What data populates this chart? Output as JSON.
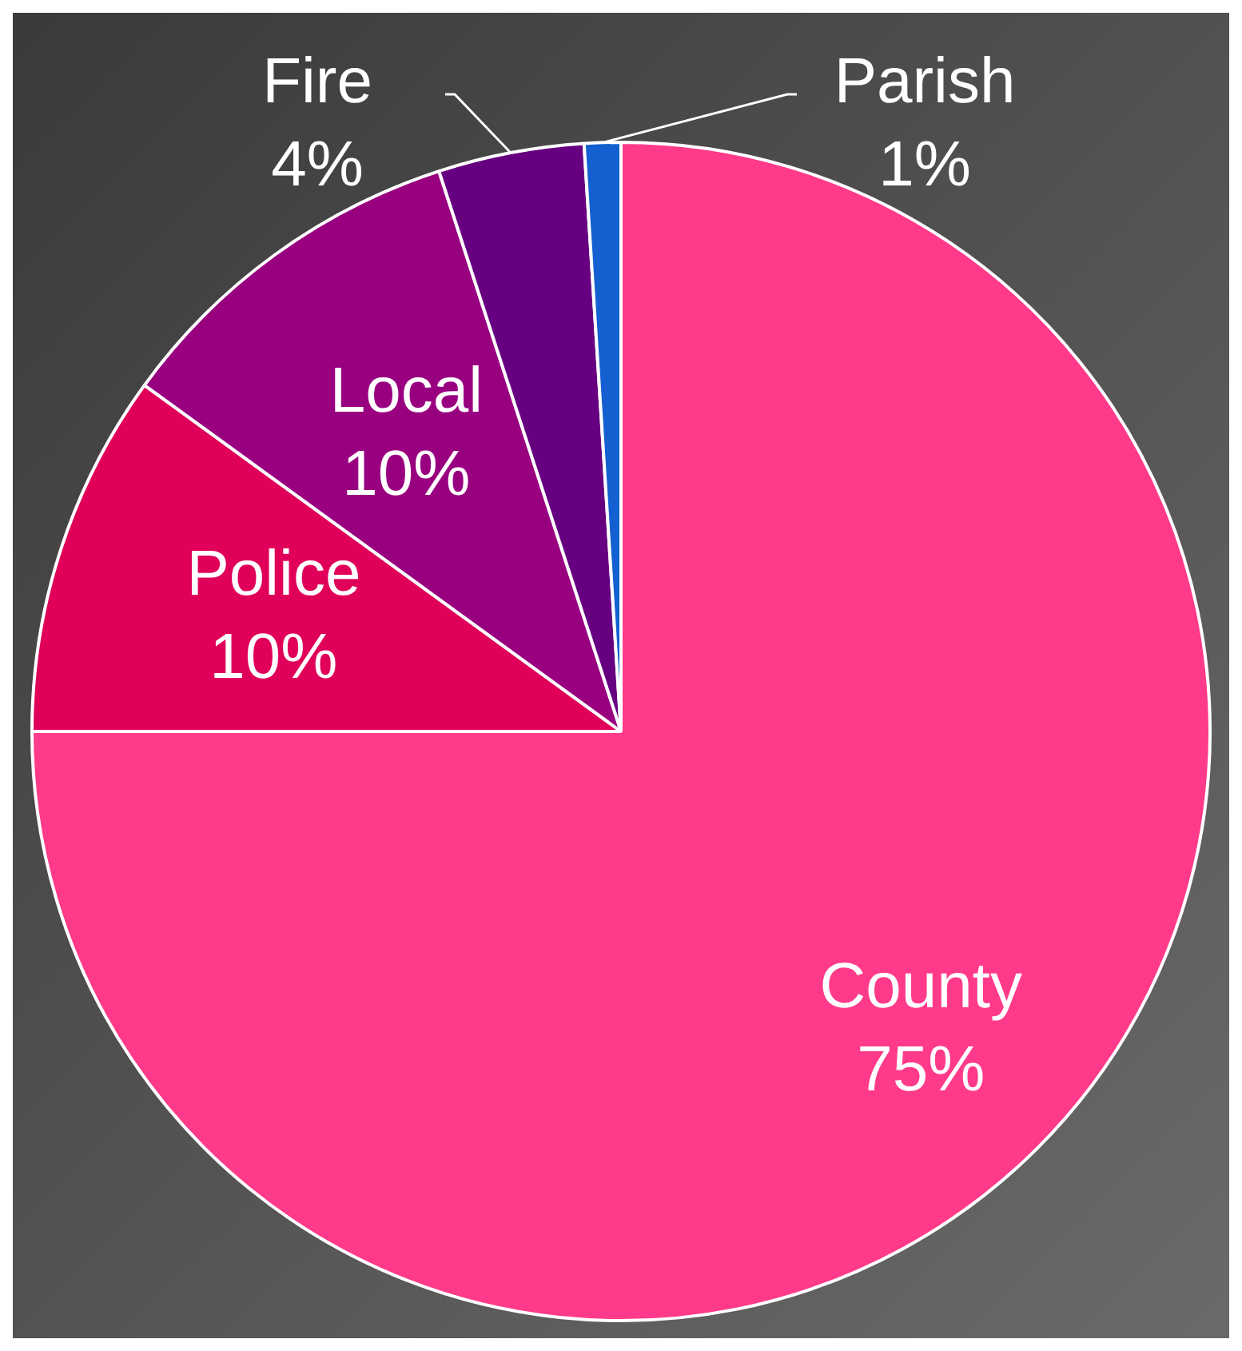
{
  "chart_data": {
    "type": "pie",
    "categories": [
      "County",
      "Police",
      "Local",
      "Fire",
      "Parish"
    ],
    "values": [
      75,
      10,
      10,
      4,
      1
    ],
    "colors": [
      "#ff3a8a",
      "#e0005a",
      "#990080",
      "#660080",
      "#1560d0"
    ],
    "value_labels": [
      "75%",
      "10%",
      "10%",
      "4%",
      "1%"
    ],
    "legend": false
  }
}
